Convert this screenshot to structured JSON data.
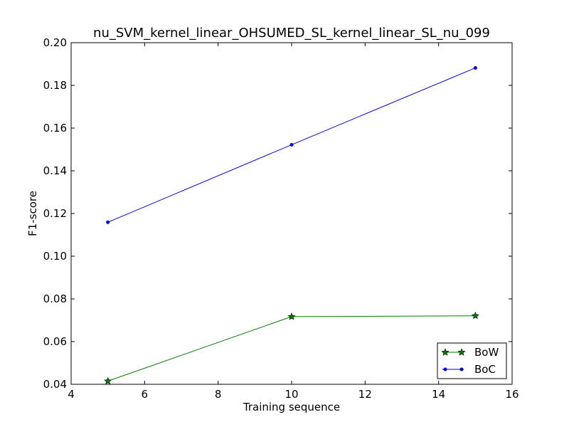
{
  "chart_data": {
    "type": "line",
    "title": "nu_SVM_kernel_linear_OHSUMED_SL_kernel_linear_SL_nu_099",
    "xlabel": "Training sequence",
    "ylabel": "F1-score",
    "xlim": [
      4,
      16
    ],
    "ylim": [
      0.04,
      0.2
    ],
    "x_ticks": [
      4,
      6,
      8,
      10,
      12,
      14,
      16
    ],
    "y_ticks": [
      0.04,
      0.06,
      0.08,
      0.1,
      0.12,
      0.14,
      0.16,
      0.18,
      0.2
    ],
    "x_tick_labels": [
      "4",
      "6",
      "8",
      "10",
      "12",
      "14",
      "16"
    ],
    "y_tick_labels": [
      "0.04",
      "0.06",
      "0.08",
      "0.10",
      "0.12",
      "0.14",
      "0.16",
      "0.18",
      "0.20"
    ],
    "grid": false,
    "legend_position": "bottom-right",
    "series": [
      {
        "name": "BoW",
        "color": "#007f00",
        "marker": "star",
        "x": [
          5,
          10,
          15
        ],
        "y": [
          0.0415,
          0.0717,
          0.0721
        ]
      },
      {
        "name": "BoC",
        "color": "#0000ff",
        "marker": "dot",
        "x": [
          5,
          10,
          15
        ],
        "y": [
          0.1159,
          0.1522,
          0.1882
        ]
      }
    ]
  }
}
